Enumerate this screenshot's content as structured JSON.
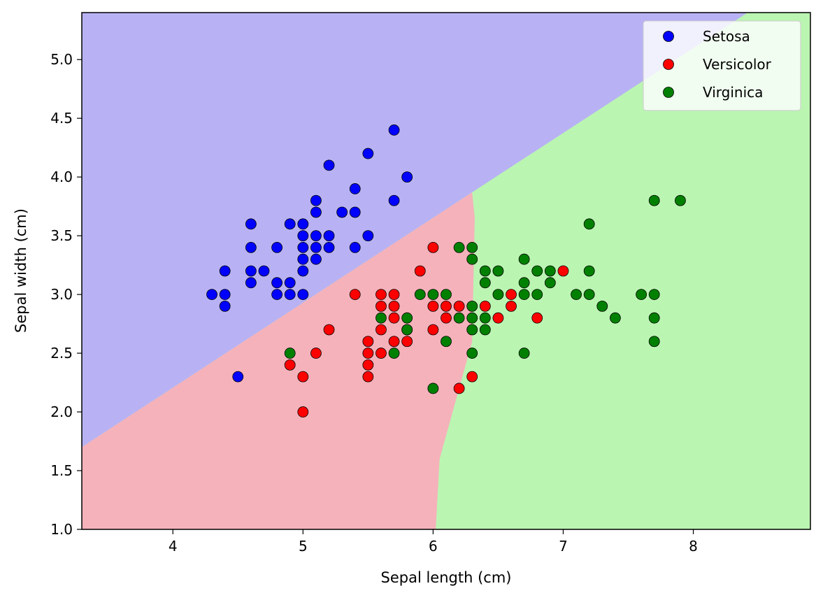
{
  "chart_data": {
    "type": "scatter",
    "title": "",
    "xlabel": "Sepal length (cm)",
    "ylabel": "Sepal width (cm)",
    "xlim": [
      3.3,
      8.9
    ],
    "ylim": [
      1.0,
      5.4
    ],
    "xticks": [
      4,
      5,
      6,
      7,
      8
    ],
    "yticks": [
      1.0,
      1.5,
      2.0,
      2.5,
      3.0,
      3.5,
      4.0,
      4.5,
      5.0
    ],
    "grid": false,
    "legend": "top-right",
    "regions": {
      "setosa_color": "#b8b2f4",
      "versicolor_color": "#f5b2bb",
      "virginica_color": "#bbf5b2"
    },
    "series": [
      {
        "name": "Setosa",
        "color": "#0000ff",
        "points": [
          [
            4.3,
            3.0
          ],
          [
            4.4,
            3.2
          ],
          [
            4.4,
            3.0
          ],
          [
            4.4,
            2.9
          ],
          [
            4.5,
            2.3
          ],
          [
            4.6,
            3.6
          ],
          [
            4.6,
            3.4
          ],
          [
            4.6,
            3.2
          ],
          [
            4.6,
            3.1
          ],
          [
            4.7,
            3.2
          ],
          [
            4.8,
            3.4
          ],
          [
            4.8,
            3.1
          ],
          [
            4.8,
            3.0
          ],
          [
            4.9,
            3.6
          ],
          [
            4.9,
            3.1
          ],
          [
            4.9,
            3.0
          ],
          [
            5.0,
            3.6
          ],
          [
            5.0,
            3.5
          ],
          [
            5.0,
            3.4
          ],
          [
            5.0,
            3.3
          ],
          [
            5.0,
            3.2
          ],
          [
            5.0,
            3.0
          ],
          [
            5.1,
            3.8
          ],
          [
            5.1,
            3.7
          ],
          [
            5.1,
            3.5
          ],
          [
            5.1,
            3.4
          ],
          [
            5.1,
            3.3
          ],
          [
            5.2,
            4.1
          ],
          [
            5.2,
            3.5
          ],
          [
            5.2,
            3.4
          ],
          [
            5.3,
            3.7
          ],
          [
            5.4,
            3.9
          ],
          [
            5.4,
            3.7
          ],
          [
            5.4,
            3.4
          ],
          [
            5.5,
            4.2
          ],
          [
            5.5,
            3.5
          ],
          [
            5.7,
            4.4
          ],
          [
            5.7,
            3.8
          ],
          [
            5.8,
            4.0
          ]
        ]
      },
      {
        "name": "Versicolor",
        "color": "#ff0000",
        "points": [
          [
            4.9,
            2.4
          ],
          [
            5.0,
            2.3
          ],
          [
            5.0,
            2.0
          ],
          [
            5.1,
            2.5
          ],
          [
            5.2,
            2.7
          ],
          [
            5.4,
            3.0
          ],
          [
            5.5,
            2.6
          ],
          [
            5.5,
            2.5
          ],
          [
            5.5,
            2.4
          ],
          [
            5.5,
            2.3
          ],
          [
            5.6,
            3.0
          ],
          [
            5.6,
            2.9
          ],
          [
            5.6,
            2.7
          ],
          [
            5.6,
            2.5
          ],
          [
            5.7,
            3.0
          ],
          [
            5.7,
            2.9
          ],
          [
            5.7,
            2.8
          ],
          [
            5.7,
            2.6
          ],
          [
            5.8,
            2.7
          ],
          [
            5.8,
            2.6
          ],
          [
            5.9,
            3.2
          ],
          [
            6.0,
            3.4
          ],
          [
            6.0,
            2.9
          ],
          [
            6.0,
            2.7
          ],
          [
            6.1,
            2.9
          ],
          [
            6.1,
            2.8
          ],
          [
            6.2,
            2.9
          ],
          [
            6.2,
            2.2
          ],
          [
            6.3,
            2.3
          ],
          [
            6.4,
            2.9
          ],
          [
            6.5,
            2.8
          ],
          [
            6.6,
            3.0
          ],
          [
            6.6,
            2.9
          ],
          [
            6.8,
            2.8
          ],
          [
            7.0,
            3.2
          ]
        ]
      },
      {
        "name": "Virginica",
        "color": "#008000",
        "points": [
          [
            4.9,
            2.5
          ],
          [
            5.6,
            2.8
          ],
          [
            5.7,
            2.5
          ],
          [
            5.8,
            2.8
          ],
          [
            5.8,
            2.7
          ],
          [
            5.9,
            3.0
          ],
          [
            6.0,
            3.0
          ],
          [
            6.0,
            2.2
          ],
          [
            6.1,
            3.0
          ],
          [
            6.1,
            2.6
          ],
          [
            6.2,
            3.4
          ],
          [
            6.2,
            2.8
          ],
          [
            6.3,
            3.4
          ],
          [
            6.3,
            3.3
          ],
          [
            6.3,
            2.9
          ],
          [
            6.3,
            2.8
          ],
          [
            6.3,
            2.7
          ],
          [
            6.3,
            2.5
          ],
          [
            6.4,
            3.2
          ],
          [
            6.4,
            3.1
          ],
          [
            6.4,
            2.8
          ],
          [
            6.4,
            2.7
          ],
          [
            6.5,
            3.2
          ],
          [
            6.5,
            3.0
          ],
          [
            6.7,
            3.3
          ],
          [
            6.7,
            3.1
          ],
          [
            6.7,
            3.0
          ],
          [
            6.7,
            2.5
          ],
          [
            6.8,
            3.2
          ],
          [
            6.8,
            3.0
          ],
          [
            6.9,
            3.2
          ],
          [
            6.9,
            3.1
          ],
          [
            7.1,
            3.0
          ],
          [
            7.2,
            3.6
          ],
          [
            7.2,
            3.2
          ],
          [
            7.2,
            3.0
          ],
          [
            7.3,
            2.9
          ],
          [
            7.4,
            2.8
          ],
          [
            7.6,
            3.0
          ],
          [
            7.7,
            3.8
          ],
          [
            7.7,
            3.0
          ],
          [
            7.7,
            2.8
          ],
          [
            7.7,
            2.6
          ],
          [
            7.9,
            3.8
          ]
        ]
      }
    ]
  }
}
